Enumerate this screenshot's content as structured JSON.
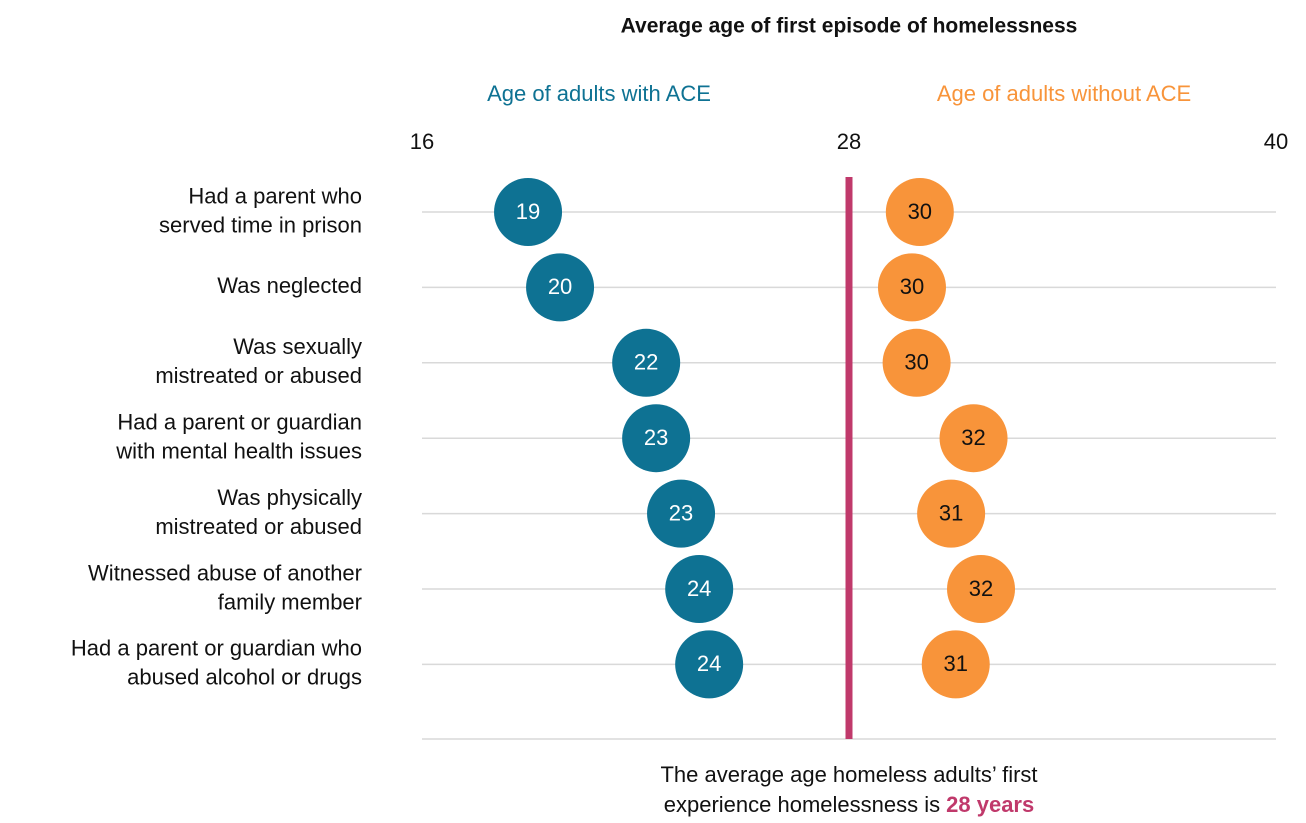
{
  "chart_data": {
    "type": "dot",
    "title": "Average age of first episode of homelessness",
    "categories": [
      [
        "Had a parent who",
        "served time in prison"
      ],
      [
        "Was neglected"
      ],
      [
        "Was sexually",
        "mistreated or abused"
      ],
      [
        "Had a parent or guardian",
        "with mental health issues"
      ],
      [
        "Was physically",
        "mistreated or abused"
      ],
      [
        "Witnessed abuse of another",
        "family member"
      ],
      [
        "Had a parent or guardian who",
        "abused alcohol or drugs"
      ]
    ],
    "series": [
      {
        "name": "Age of adults with ACE",
        "color": "#0e7293",
        "label_color": "#ffffff",
        "values": [
          18.98,
          19.88,
          22.3,
          22.58,
          23.28,
          23.79,
          24.07
        ],
        "value_labels": [
          "19",
          "20",
          "22",
          "23",
          "23",
          "24",
          "24"
        ]
      },
      {
        "name": "Age of adults without ACE",
        "color": "#f8943a",
        "label_color": "#111111",
        "values": [
          29.99,
          29.77,
          29.9,
          31.5,
          30.87,
          31.71,
          31.0
        ],
        "value_labels": [
          "30",
          "30",
          "30",
          "32",
          "31",
          "32",
          "31"
        ]
      }
    ],
    "xlim": [
      16,
      40
    ],
    "xticks": [
      16,
      28,
      40
    ],
    "reference_line": {
      "value": 28,
      "color": "#c0396b"
    },
    "annotation": {
      "lines": [
        "The average age homeless adults’ first",
        "experience homelessness is"
      ],
      "highlight": "28 years"
    }
  }
}
